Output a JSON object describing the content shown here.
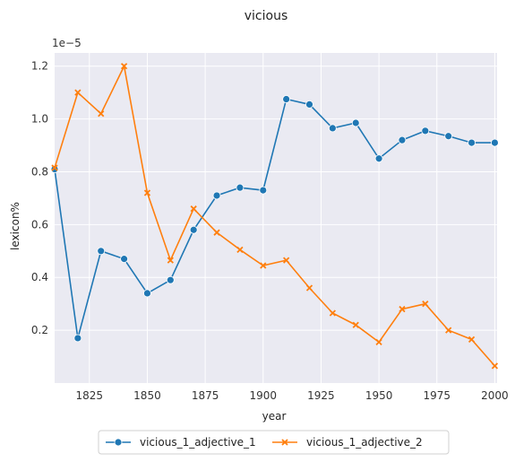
{
  "chart_data": {
    "type": "line",
    "title": "vicious",
    "xlabel": "year",
    "ylabel": "lexicon%",
    "y_scale_note": "1e−5",
    "xlim": [
      1810,
      2001
    ],
    "ylim": [
      0.0,
      1.25
    ],
    "xticks": [
      1825,
      1850,
      1875,
      1900,
      1925,
      1950,
      1975,
      2000
    ],
    "yticks": [
      0.2,
      0.4,
      0.6,
      0.8,
      1.0,
      1.2
    ],
    "ytick_labels": [
      "0.2",
      "0.4",
      "0.6",
      "0.8",
      "1.0",
      "1.2"
    ],
    "grid": true,
    "legend_position": "bottom-center",
    "x": [
      1810,
      1820,
      1830,
      1840,
      1850,
      1860,
      1870,
      1880,
      1890,
      1900,
      1910,
      1920,
      1930,
      1940,
      1950,
      1960,
      1970,
      1980,
      1990,
      2000
    ],
    "series": [
      {
        "name": "vicious_1_adjective_1",
        "color": "#1f77b4",
        "marker": "circle",
        "values": [
          0.81,
          0.17,
          0.5,
          0.47,
          0.34,
          0.39,
          0.58,
          0.71,
          0.74,
          0.73,
          1.075,
          1.055,
          0.965,
          0.985,
          0.85,
          0.92,
          0.955,
          0.935,
          0.91,
          0.91
        ]
      },
      {
        "name": "vicious_1_adjective_2",
        "color": "#ff7f0e",
        "marker": "x",
        "values": [
          0.815,
          1.1,
          1.02,
          1.2,
          0.72,
          0.465,
          0.66,
          0.57,
          0.505,
          0.445,
          0.465,
          0.36,
          0.265,
          0.22,
          0.155,
          0.28,
          0.3,
          0.2,
          0.165,
          0.065
        ]
      }
    ]
  }
}
